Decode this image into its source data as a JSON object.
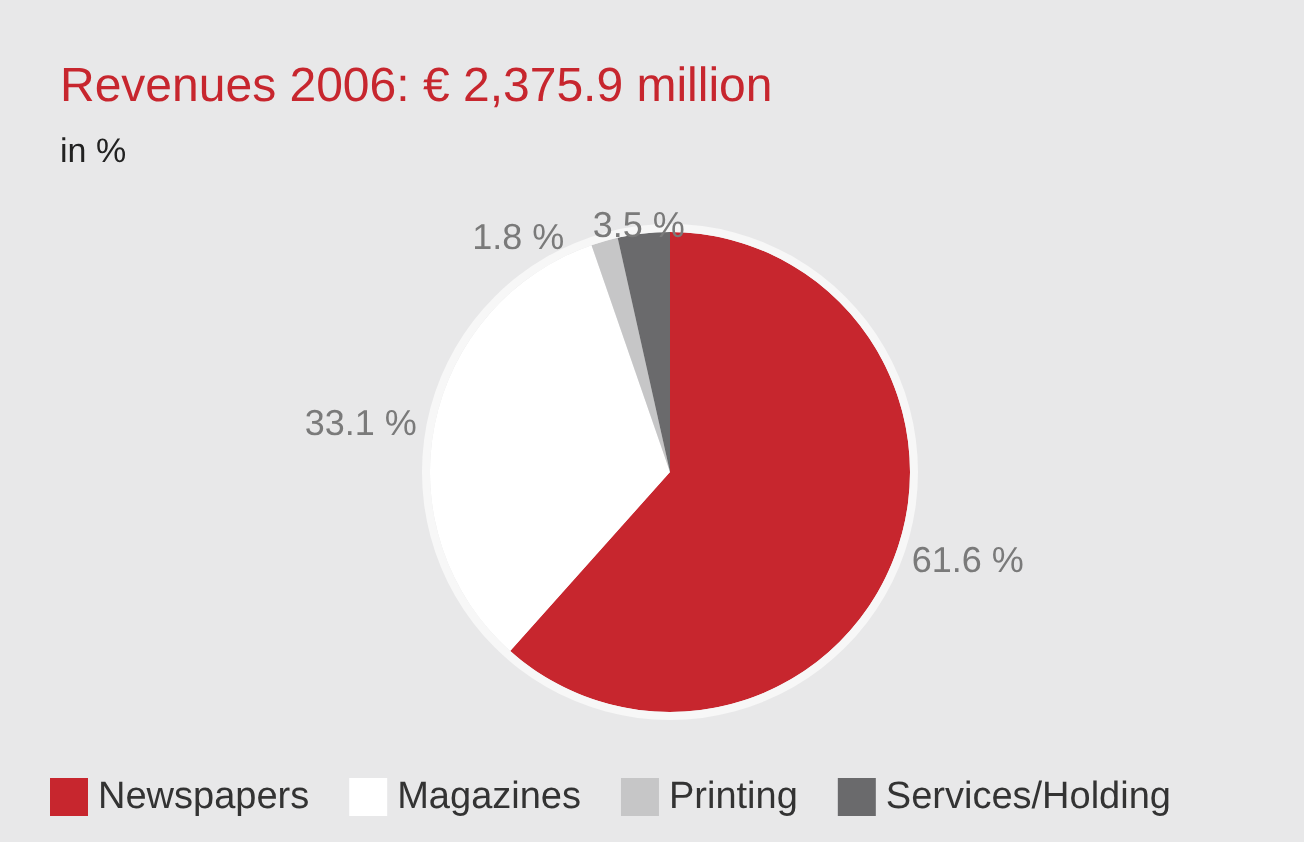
{
  "chart_data": {
    "type": "pie",
    "title": "Revenues 2006: € 2,375.9 million",
    "subtitle": "in %",
    "categories": [
      "Newspapers",
      "Magazines",
      "Printing",
      "Services/Holding"
    ],
    "values": [
      61.6,
      33.1,
      1.8,
      3.5
    ],
    "colors": [
      "#c7262e",
      "#ffffff",
      "#c6c6c7",
      "#6a6a6c"
    ],
    "value_labels": [
      "61.6 %",
      "33.1 %",
      "1.8 %",
      "3.5 %"
    ],
    "legend": "bottom"
  }
}
